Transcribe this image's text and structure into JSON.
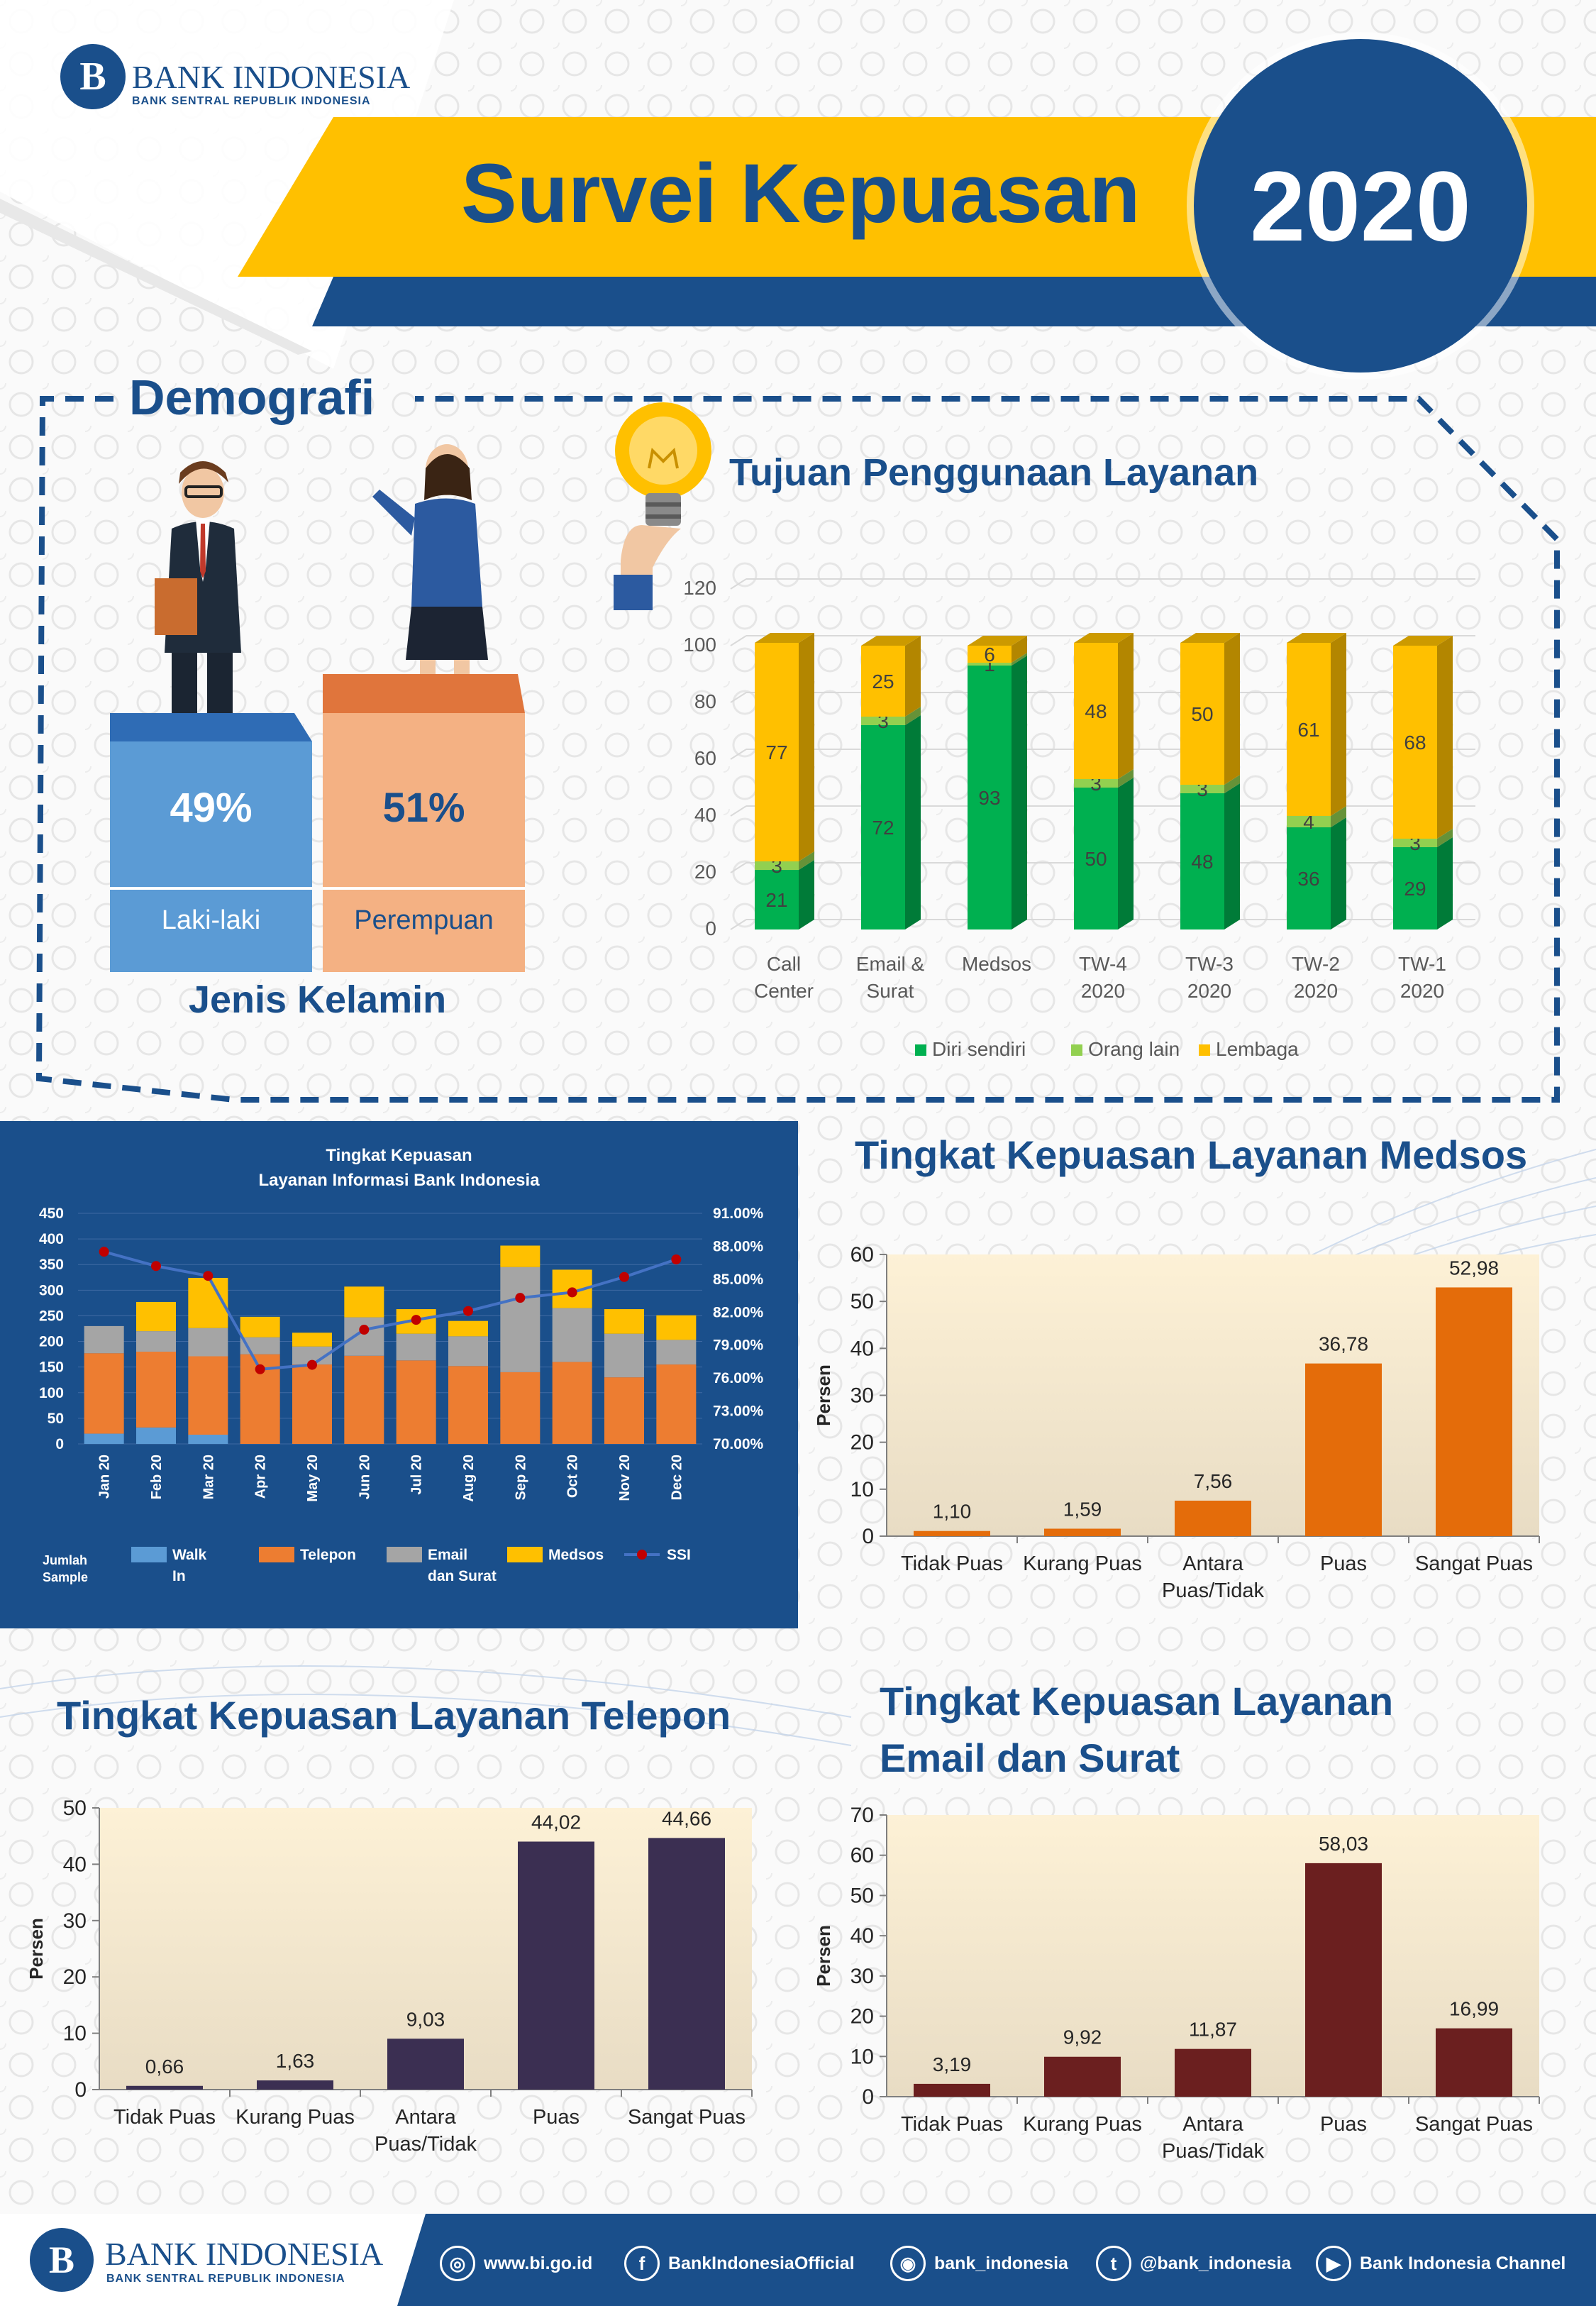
{
  "header": {
    "logo_name": "BANK INDONESIA",
    "logo_sub": "BANK SENTRAL REPUBLIK INDONESIA",
    "title": "Survei Kepuasan",
    "year": "2020"
  },
  "demografi": {
    "section_title": "Demografi",
    "gender_title": "Jenis Kelamin",
    "male_pct": "49%",
    "male_label": "Laki-laki",
    "female_pct": "51%",
    "female_label": "Perempuan"
  },
  "colors": {
    "navy": "#1a4f8b",
    "gold": "#ffc000",
    "green": "#00b050",
    "lightgreen": "#92d050",
    "orange": "#e46c0a",
    "purple": "#3b2f52",
    "maroon": "#6b1f1f"
  },
  "chart_data": [
    {
      "id": "tujuan",
      "type": "bar",
      "stacked": true,
      "title": "Tujuan Penggunaan Layanan",
      "categories": [
        "Call Center",
        "Email & Surat",
        "Medsos",
        "TW-4 2020",
        "TW-3 2020",
        "TW-2 2020",
        "TW-1 2020"
      ],
      "series": [
        {
          "name": "Diri sendiri",
          "values": [
            21,
            72,
            93,
            50,
            48,
            36,
            29
          ]
        },
        {
          "name": "Orang lain",
          "values": [
            3,
            3,
            1,
            3,
            3,
            4,
            3
          ]
        },
        {
          "name": "Lembaga",
          "values": [
            77,
            25,
            6,
            48,
            50,
            61,
            68
          ]
        }
      ],
      "ylim": [
        0,
        120
      ],
      "yticks": [
        0,
        20,
        40,
        60,
        80,
        100,
        120
      ],
      "legend": "bottom"
    },
    {
      "id": "bulanan",
      "type": "bar",
      "stacked": true,
      "title": "Tingkat Kepuasan",
      "subtitle": "Layanan Informasi Bank Indonesia",
      "categories": [
        "Jan 20",
        "Feb 20",
        "Mar 20",
        "Apr 20",
        "May 20",
        "Jun 20",
        "Jul 20",
        "Aug 20",
        "Sep 20",
        "Oct 20",
        "Nov 20",
        "Dec 20"
      ],
      "series": [
        {
          "name": "Walk In",
          "values": [
            20,
            32,
            18,
            0,
            0,
            0,
            0,
            0,
            0,
            0,
            0,
            0
          ]
        },
        {
          "name": "Telepon",
          "values": [
            157,
            148,
            153,
            175,
            155,
            172,
            163,
            152,
            140,
            160,
            130,
            155
          ]
        },
        {
          "name": "Email dan Surat",
          "values": [
            53,
            40,
            55,
            33,
            35,
            75,
            52,
            58,
            205,
            105,
            85,
            48
          ]
        },
        {
          "name": "Medsos",
          "values": [
            0,
            57,
            98,
            40,
            27,
            60,
            48,
            30,
            42,
            75,
            48,
            48
          ]
        }
      ],
      "line_series": {
        "name": "SSI",
        "values": [
          87.5,
          86.2,
          85.3,
          76.8,
          77.2,
          80.4,
          81.3,
          82.1,
          83.3,
          83.8,
          85.2,
          86.8
        ]
      },
      "ylim": [
        0,
        450
      ],
      "yticks": [
        0,
        50,
        100,
        150,
        200,
        250,
        300,
        350,
        400,
        450
      ],
      "y2lim": [
        70,
        91
      ],
      "y2ticks": [
        "70.00%",
        "73.00%",
        "76.00%",
        "79.00%",
        "82.00%",
        "85.00%",
        "88.00%",
        "91.00%"
      ],
      "ylabel": "Jumlah Sample",
      "legend": "bottom"
    },
    {
      "id": "medsos",
      "type": "bar",
      "title": "Tingkat Kepuasan Layanan Medsos",
      "categories": [
        "Tidak Puas",
        "Kurang Puas",
        "Antara Puas/Tidak",
        "Puas",
        "Sangat Puas"
      ],
      "values": [
        1.1,
        1.59,
        7.56,
        36.78,
        52.98
      ],
      "labels": [
        "1,10",
        "1,59",
        "7,56",
        "36,78",
        "52,98"
      ],
      "ylabel": "Persen",
      "ylim": [
        0,
        60
      ],
      "yticks": [
        0,
        10,
        20,
        30,
        40,
        50,
        60
      ]
    },
    {
      "id": "telepon",
      "type": "bar",
      "title": "Tingkat Kepuasan Layanan Telepon",
      "categories": [
        "Tidak Puas",
        "Kurang Puas",
        "Antara Puas/Tidak",
        "Puas",
        "Sangat Puas"
      ],
      "values": [
        0.66,
        1.63,
        9.03,
        44.02,
        44.66
      ],
      "labels": [
        "0,66",
        "1,63",
        "9,03",
        "44,02",
        "44,66"
      ],
      "ylabel": "Persen",
      "ylim": [
        0,
        50
      ],
      "yticks": [
        0,
        10,
        20,
        30,
        40,
        50
      ]
    },
    {
      "id": "email",
      "type": "bar",
      "title": "Tingkat Kepuasan Layanan Email dan Surat",
      "categories": [
        "Tidak Puas",
        "Kurang Puas",
        "Antara Puas/Tidak",
        "Puas",
        "Sangat Puas"
      ],
      "values": [
        3.19,
        9.92,
        11.87,
        58.03,
        16.99
      ],
      "labels": [
        "3,19",
        "9,92",
        "11,87",
        "58,03",
        "16,99"
      ],
      "ylabel": "Persen",
      "ylim": [
        0,
        70
      ],
      "yticks": [
        0,
        10,
        20,
        30,
        40,
        50,
        60,
        70
      ]
    }
  ],
  "titles": {
    "medsos": "Tingkat Kepuasan Layanan Medsos",
    "telepon": "Tingkat Kepuasan Layanan Telepon",
    "email_line1": "Tingkat Kepuasan Layanan",
    "email_line2": "Email dan Surat"
  },
  "footer": {
    "logo_name": "BANK INDONESIA",
    "logo_sub": "BANK SENTRAL REPUBLIK INDONESIA",
    "website": "www.bi.go.id",
    "facebook": "BankIndonesiaOfficial",
    "instagram": "bank_indonesia",
    "twitter": "@bank_indonesia",
    "youtube": "Bank Indonesia Channel"
  }
}
